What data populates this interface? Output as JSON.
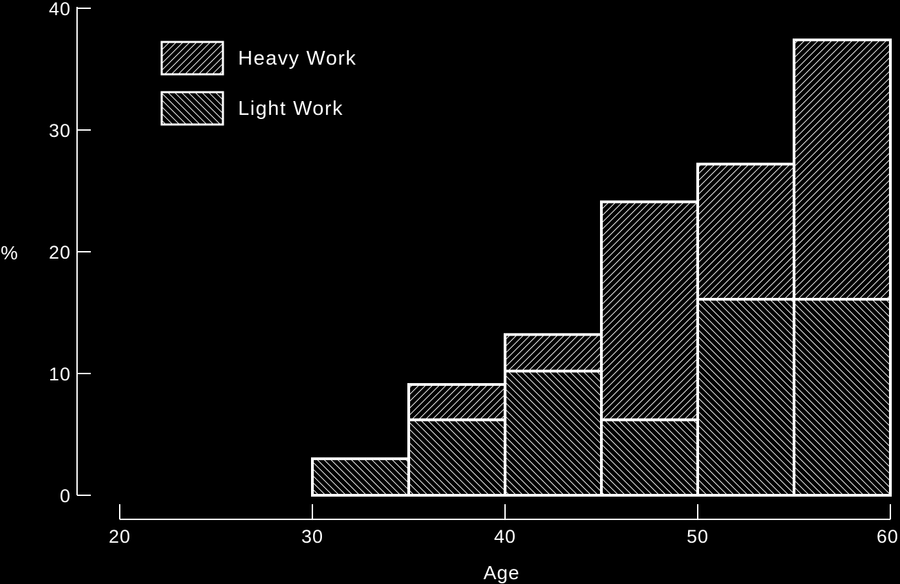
{
  "chart_data": {
    "type": "bar",
    "subtype": "stacked-histogram",
    "xlabel": "Age",
    "ylabel": "%",
    "xlim": [
      20,
      60
    ],
    "ylim": [
      0,
      40
    ],
    "x_ticks": [
      "20",
      "30",
      "40",
      "50",
      "60"
    ],
    "y_ticks": [
      "0",
      "10",
      "20",
      "30",
      "40"
    ],
    "bins": [
      {
        "from": 30,
        "to": 35
      },
      {
        "from": 35,
        "to": 40
      },
      {
        "from": 40,
        "to": 45
      },
      {
        "from": 45,
        "to": 50
      },
      {
        "from": 50,
        "to": 55
      },
      {
        "from": 55,
        "to": 60
      }
    ],
    "series": [
      {
        "name": "Light Work",
        "pattern": "light-hatch",
        "values": [
          3,
          6.2,
          10.2,
          6.2,
          16.1,
          16.1
        ]
      },
      {
        "name": "Heavy Work",
        "pattern": "heavy-hatch",
        "values": [
          0,
          2.9,
          3.0,
          17.9,
          11.1,
          21.3
        ]
      }
    ],
    "legend": {
      "position": "top-left",
      "items": [
        {
          "label": "Heavy Work",
          "pattern": "heavy-hatch"
        },
        {
          "label": "Light Work",
          "pattern": "light-hatch"
        }
      ]
    },
    "grid": false,
    "colors": {
      "background": "#000000",
      "foreground": "#ffffff"
    }
  }
}
